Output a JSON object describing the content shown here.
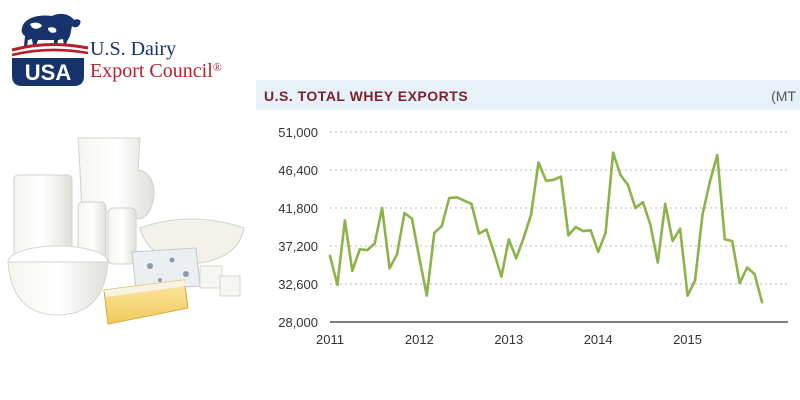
{
  "logo": {
    "line1": "U.S. Dairy",
    "line2": "Export Council",
    "mark": "®",
    "badge": "USA"
  },
  "chart_data": {
    "type": "line",
    "title": "U.S. TOTAL WHEY EXPORTS",
    "unit_label": "(MT",
    "xlabel": "",
    "ylabel": "",
    "ylim": [
      28000,
      51000
    ],
    "yticks": [
      51000,
      46400,
      41800,
      37200,
      32600,
      28000
    ],
    "ytick_labels": [
      "51,000",
      "46,400",
      "41,800",
      "37,200",
      "32,600",
      "28,000"
    ],
    "xticks": [
      2011,
      2012,
      2013,
      2014,
      2015
    ],
    "xtick_labels": [
      "2011",
      "2012",
      "2013",
      "2014",
      "2015"
    ],
    "xlim": [
      2011.0,
      2015.9
    ],
    "grid": true,
    "line_color": "#8cb34a",
    "series": [
      {
        "x": [
          2011.0,
          2011.083,
          2011.167,
          2011.25,
          2011.333,
          2011.417,
          2011.5,
          2011.583,
          2011.667,
          2011.75,
          2011.833,
          2011.917,
          2012.0,
          2012.083,
          2012.167,
          2012.25,
          2012.333,
          2012.417,
          2012.5,
          2012.583,
          2012.667,
          2012.75,
          2012.833,
          2012.917,
          2013.0,
          2013.083,
          2013.167,
          2013.25,
          2013.333,
          2013.417,
          2013.5,
          2013.583,
          2013.667,
          2013.75,
          2013.833,
          2013.917,
          2014.0,
          2014.083,
          2014.167,
          2014.25,
          2014.333,
          2014.417,
          2014.5,
          2014.583,
          2014.667,
          2014.75,
          2014.833,
          2014.917,
          2015.0,
          2015.083,
          2015.167,
          2015.25,
          2015.333,
          2015.417,
          2015.5,
          2015.583,
          2015.667,
          2015.75,
          2015.833
        ],
        "values": [
          36000,
          32500,
          40300,
          34200,
          36800,
          36700,
          37500,
          41800,
          34500,
          36200,
          41200,
          40500,
          35700,
          31200,
          38800,
          39600,
          43000,
          43100,
          42700,
          42300,
          38700,
          39200,
          36500,
          33500,
          38000,
          35700,
          38200,
          41000,
          47300,
          45100,
          45200,
          45600,
          38500,
          39500,
          39000,
          39100,
          36500,
          38800,
          48500,
          45800,
          44600,
          41800,
          42500,
          39800,
          35200,
          42300,
          37800,
          39300,
          31200,
          33000,
          41000,
          45000,
          48200,
          38000,
          37800,
          32700,
          34600,
          33800,
          30400
        ]
      }
    ]
  }
}
